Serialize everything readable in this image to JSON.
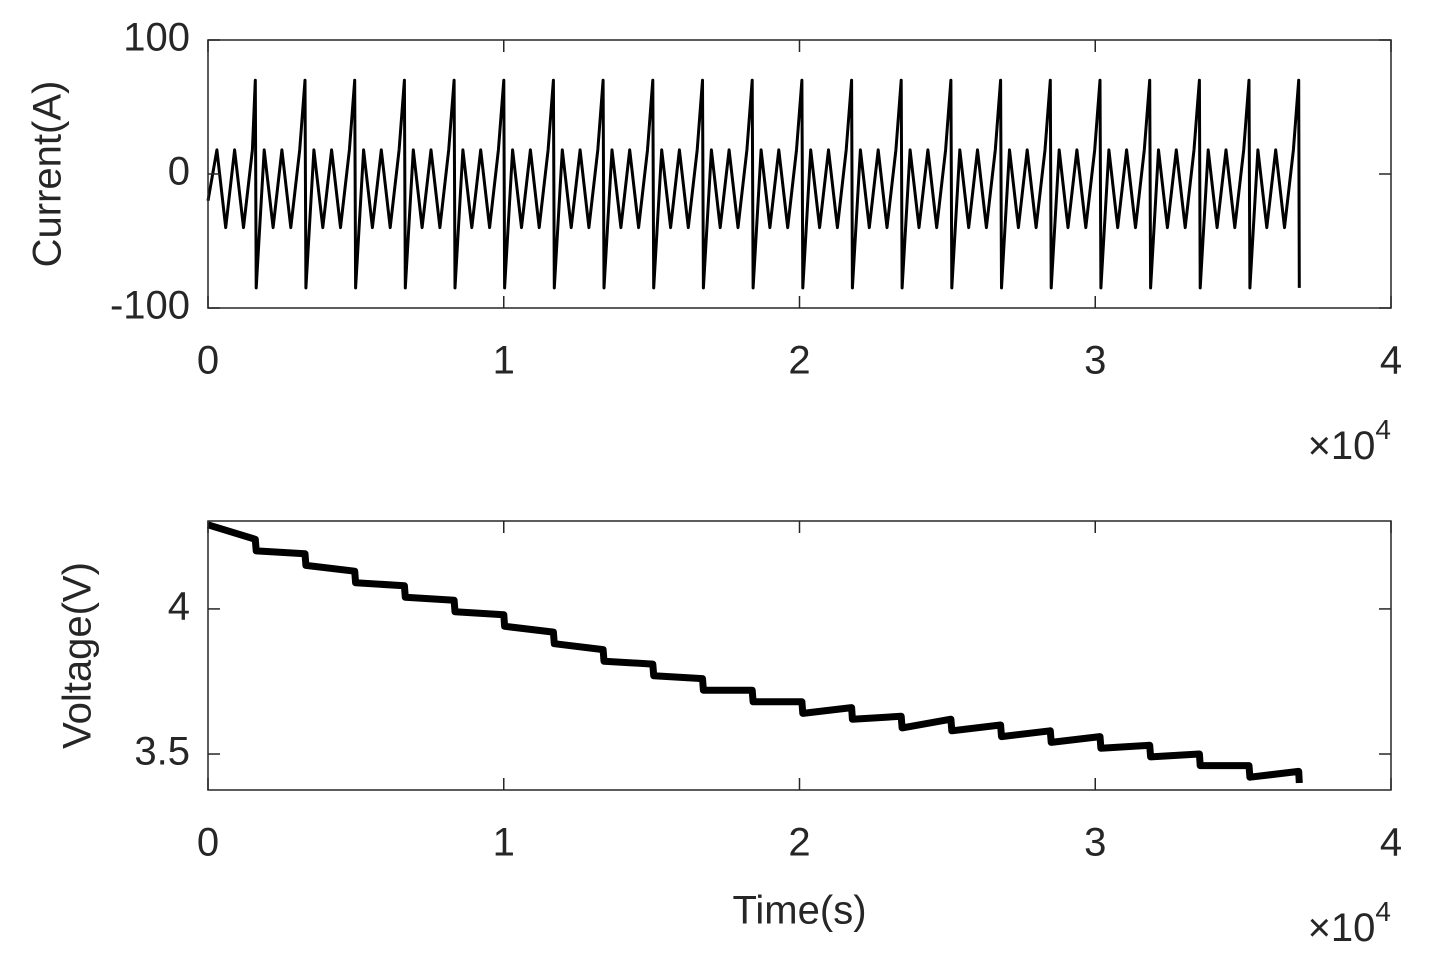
{
  "chart_data": [
    {
      "type": "line",
      "ylabel": "Current(A)",
      "x_multiplier": {
        "base": "×10",
        "exponent": "4"
      },
      "xlim": [
        0,
        40000
      ],
      "xticks": [
        0,
        {
          "value": 10000,
          "label": "1"
        },
        {
          "value": 20000,
          "label": "2"
        },
        {
          "value": 30000,
          "label": "3"
        },
        {
          "value": 40000,
          "label": "4"
        }
      ],
      "ylim": [
        -100,
        100
      ],
      "yticks": [
        -100,
        0,
        100
      ],
      "grid": false,
      "series": [
        {
          "color": "#000000",
          "x": [
            0,
            300,
            600,
            900,
            1200,
            1500,
            1600,
            1630,
            1900,
            2200,
            2500,
            2800,
            3100,
            3280,
            3310,
            3580,
            3880,
            4180,
            4480,
            4780,
            4960,
            4990,
            5260,
            5560,
            5860,
            6160,
            6460,
            6640,
            6670,
            6940,
            7240,
            7540,
            7840,
            8140,
            8320,
            8350,
            8620,
            8920,
            9220,
            9520,
            9820,
            10000,
            10030,
            10300,
            10600,
            10900,
            11200,
            11500,
            11680,
            11710,
            11980,
            12280,
            12580,
            12880,
            13180,
            13360,
            13390,
            13660,
            13960,
            14260,
            14560,
            14860,
            15040,
            15070,
            15340,
            15640,
            15940,
            16240,
            16540,
            16720,
            16750,
            17020,
            17320,
            17620,
            17920,
            18220,
            18400,
            18430,
            18700,
            19000,
            19300,
            19600,
            19900,
            20080,
            20110,
            20380,
            20680,
            20980,
            21280,
            21580,
            21760,
            21790,
            22060,
            22360,
            22660,
            22960,
            23260,
            23440,
            23470,
            23740,
            24040,
            24340,
            24640,
            24940,
            25120,
            25150,
            25420,
            25720,
            26020,
            26320,
            26620,
            26800,
            26830,
            27100,
            27400,
            27700,
            28000,
            28300,
            28480,
            28510,
            28780,
            29080,
            29380,
            29680,
            29980,
            30160,
            30190,
            30460,
            30760,
            31060,
            31360,
            31660,
            31840,
            31870,
            32140,
            32440,
            32740,
            33040,
            33340,
            33520,
            33550,
            33820,
            34120,
            34420,
            34720,
            35020,
            35200,
            35230,
            35500,
            35800,
            36100,
            36400,
            36700,
            36880,
            36900
          ],
          "values": [
            -20,
            18,
            -40,
            18,
            -40,
            18,
            70,
            -85,
            18,
            -40,
            18,
            -40,
            18,
            70,
            -85,
            18,
            -40,
            18,
            -40,
            18,
            70,
            -85,
            18,
            -40,
            18,
            -40,
            18,
            70,
            -85,
            18,
            -40,
            18,
            -40,
            18,
            70,
            -85,
            18,
            -40,
            18,
            -40,
            18,
            70,
            -85,
            18,
            -40,
            18,
            -40,
            18,
            70,
            -85,
            18,
            -40,
            18,
            -40,
            18,
            70,
            -85,
            18,
            -40,
            18,
            -40,
            18,
            70,
            -85,
            18,
            -40,
            18,
            -40,
            18,
            70,
            -85,
            18,
            -40,
            18,
            -40,
            18,
            70,
            -85,
            18,
            -40,
            18,
            -40,
            18,
            70,
            -85,
            18,
            -40,
            18,
            -40,
            18,
            70,
            -85,
            18,
            -40,
            18,
            -40,
            18,
            70,
            -85,
            18,
            -40,
            18,
            -40,
            18,
            70,
            -85,
            18,
            -40,
            18,
            -40,
            18,
            70,
            -85,
            18,
            -40,
            18,
            -40,
            18,
            70,
            -85,
            18,
            -40,
            18,
            -40,
            18,
            70,
            -85,
            18,
            -40,
            18,
            -40,
            18,
            70,
            -85,
            18,
            -40,
            18,
            -40,
            18,
            70,
            -85,
            18,
            -40,
            18,
            -40,
            18,
            70,
            -85,
            18,
            -40,
            18,
            -40,
            18,
            70,
            -85
          ]
        }
      ]
    },
    {
      "type": "line",
      "xlabel": "Time(s)",
      "ylabel": "Voltage(V)",
      "x_multiplier": {
        "base": "×10",
        "exponent": "4"
      },
      "xlim": [
        0,
        40000
      ],
      "xticks": [
        0,
        {
          "value": 10000,
          "label": "1"
        },
        {
          "value": 20000,
          "label": "2"
        },
        {
          "value": 30000,
          "label": "3"
        },
        {
          "value": 40000,
          "label": "4"
        }
      ],
      "ylim": [
        3.376,
        4.303
      ],
      "yticks": [
        3.5,
        4
      ],
      "grid": false,
      "series": [
        {
          "color": "#000000",
          "x": [
            0,
            1600,
            1630,
            3280,
            3310,
            4960,
            4990,
            6640,
            6670,
            8320,
            8350,
            10000,
            10030,
            11680,
            11710,
            13360,
            13390,
            15040,
            15070,
            16720,
            16750,
            18400,
            18430,
            20080,
            20110,
            21760,
            21790,
            23440,
            23470,
            25120,
            25150,
            26800,
            26830,
            28480,
            28510,
            30160,
            30190,
            31840,
            31870,
            33520,
            33550,
            35200,
            35230,
            36880,
            36900
          ],
          "values": [
            4.29,
            4.24,
            4.2,
            4.19,
            4.15,
            4.13,
            4.09,
            4.08,
            4.04,
            4.03,
            3.99,
            3.98,
            3.94,
            3.92,
            3.88,
            3.86,
            3.82,
            3.81,
            3.77,
            3.76,
            3.72,
            3.72,
            3.68,
            3.68,
            3.64,
            3.66,
            3.62,
            3.63,
            3.59,
            3.62,
            3.58,
            3.6,
            3.56,
            3.58,
            3.54,
            3.56,
            3.52,
            3.53,
            3.49,
            3.5,
            3.46,
            3.46,
            3.42,
            3.44,
            3.4
          ]
        }
      ]
    }
  ]
}
